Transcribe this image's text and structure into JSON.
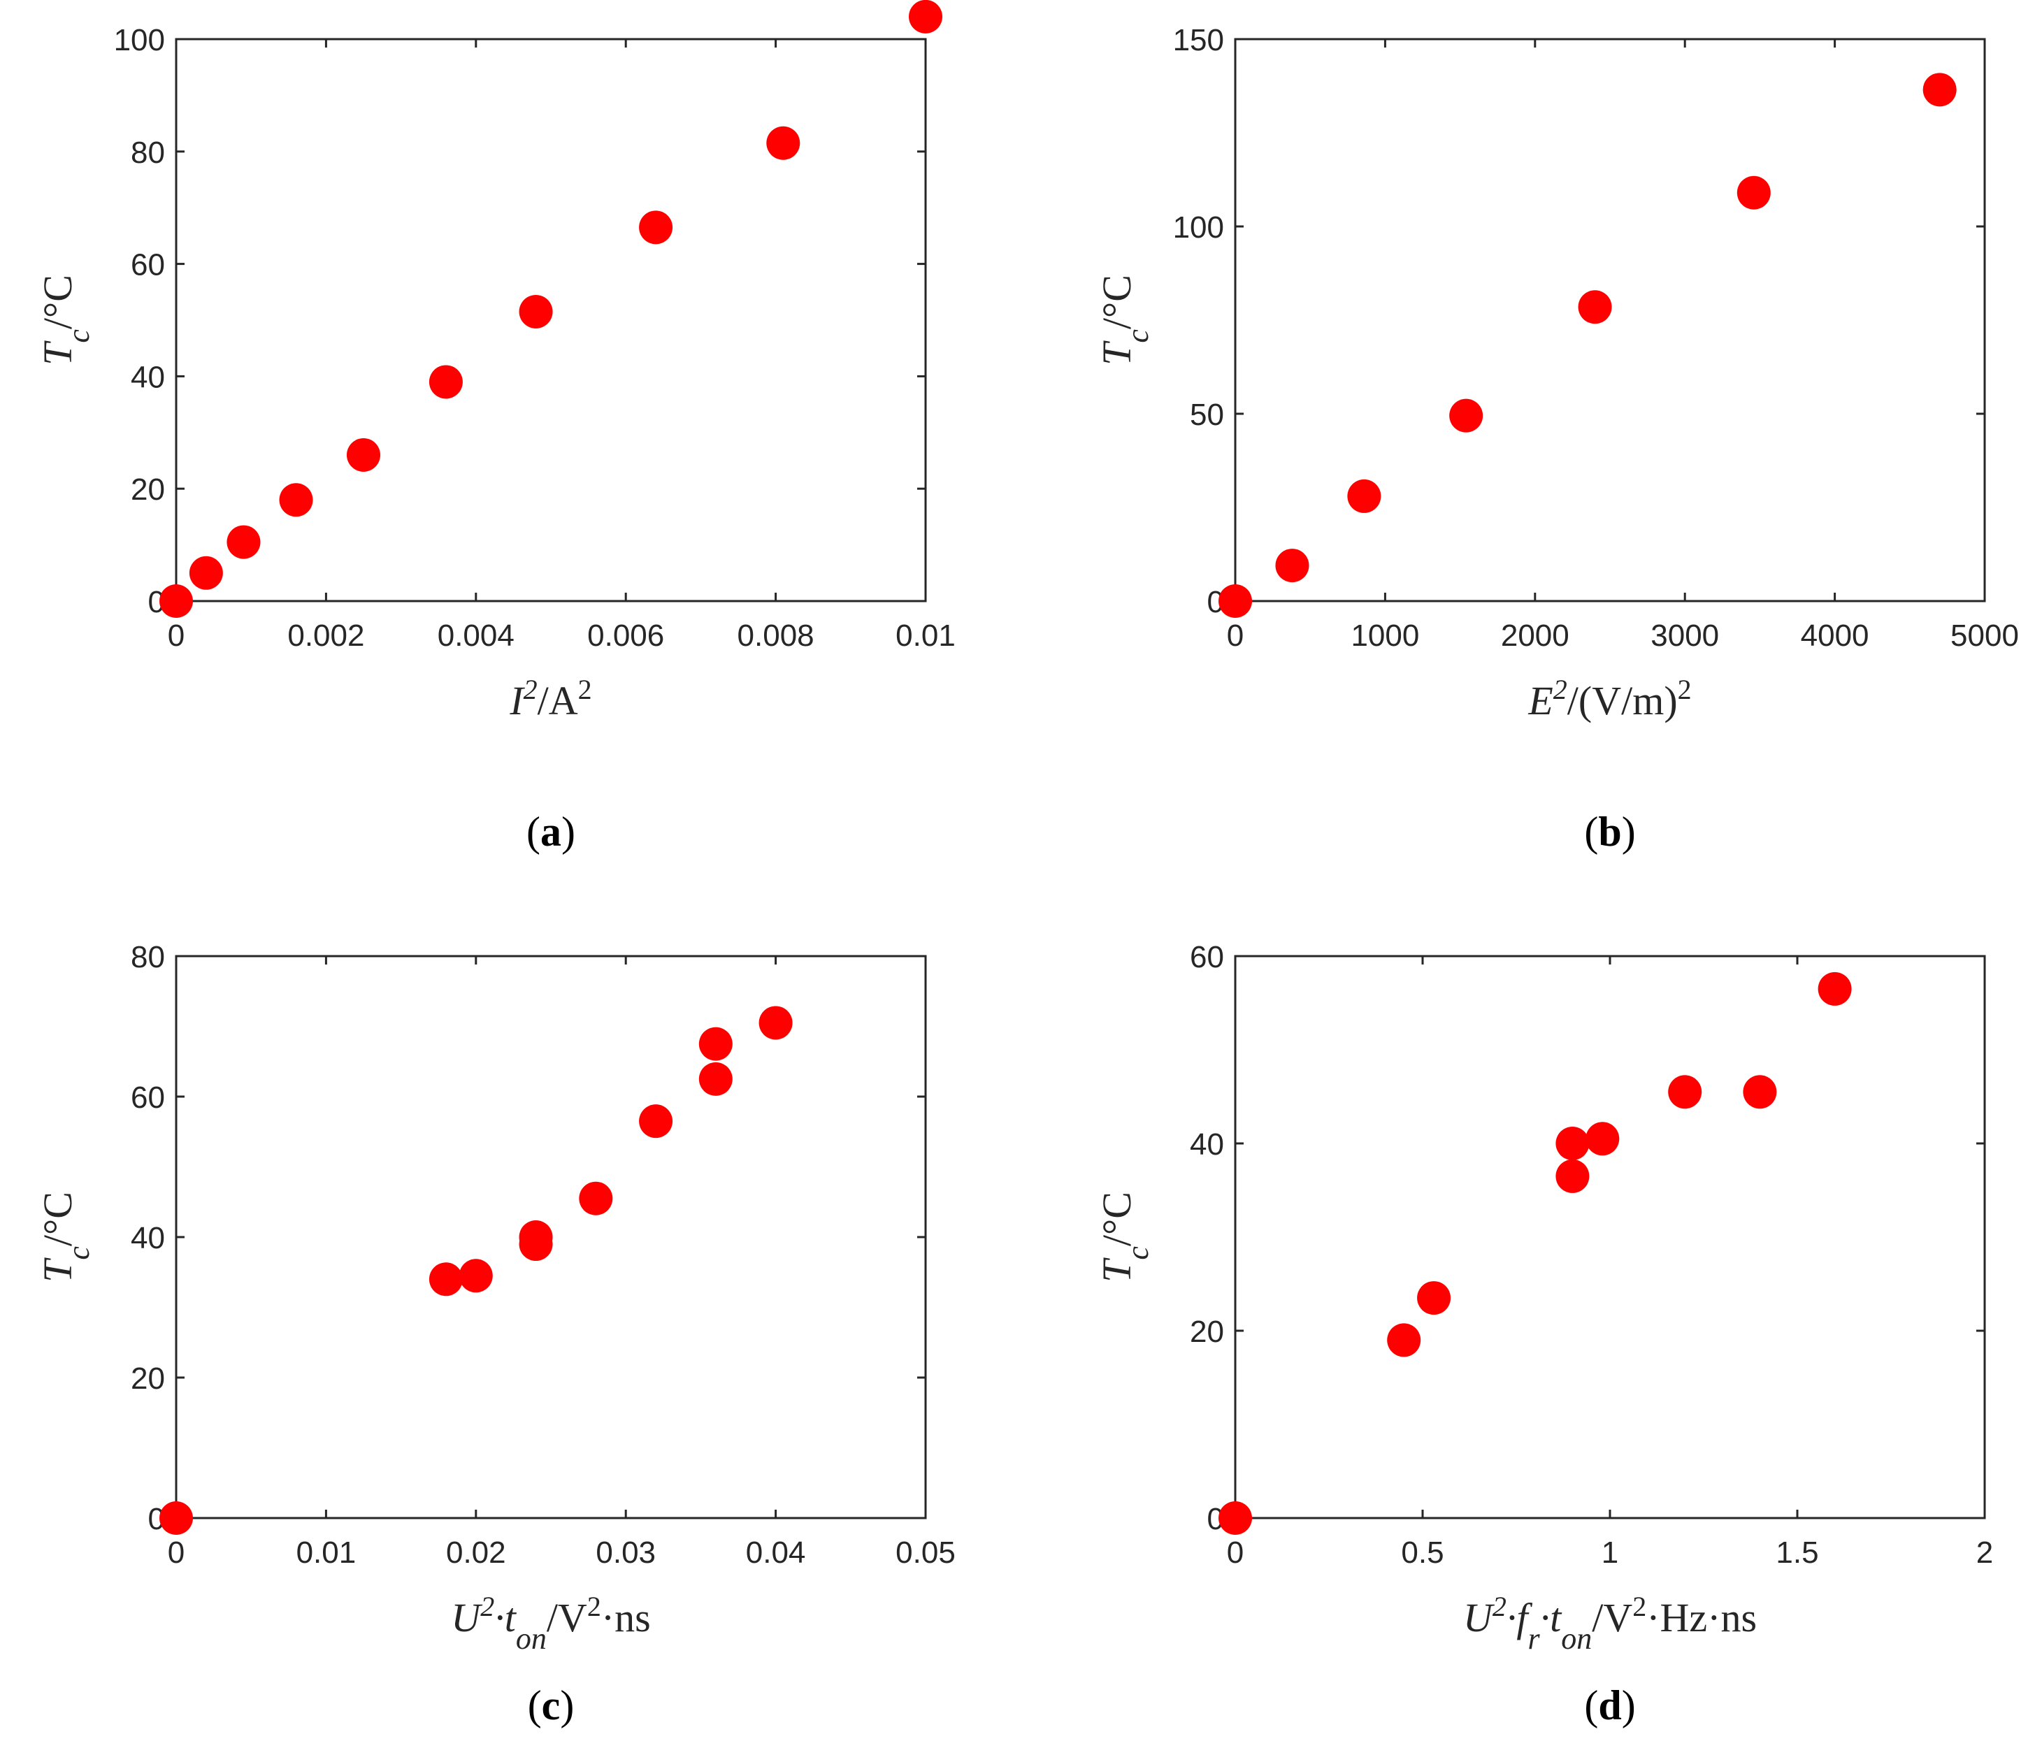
{
  "marker_color": "#ff0000",
  "axis_color": "#262626",
  "chart_data": [
    {
      "type": "scatter",
      "panel_label": "a",
      "xlabel": {
        "main": "I",
        "sup": "2",
        "rest": "/A",
        "sup2": "2"
      },
      "ylabel": {
        "main": "T",
        "sub": "c",
        "rest": "/°C"
      },
      "xlim": [
        0,
        0.01
      ],
      "ylim": [
        0,
        100
      ],
      "xticks": [
        0,
        0.002,
        0.004,
        0.006,
        0.008,
        0.01
      ],
      "xtick_labels": [
        "0",
        "0.002",
        "0.004",
        "0.006",
        "0.008",
        "0.01"
      ],
      "yticks": [
        0,
        20,
        40,
        60,
        80,
        100
      ],
      "ytick_labels": [
        "0",
        "20",
        "40",
        "60",
        "80",
        "100"
      ],
      "x": [
        0,
        0.0004,
        0.0009,
        0.0016,
        0.0025,
        0.0036,
        0.0048,
        0.0064,
        0.0081,
        0.01
      ],
      "y": [
        0,
        5,
        10.5,
        18,
        26,
        39,
        51.5,
        66.5,
        81.5,
        104
      ]
    },
    {
      "type": "scatter",
      "panel_label": "b",
      "xlabel": {
        "main": "E",
        "sup": "2",
        "rest": "/(V/m)",
        "sup2": "2"
      },
      "ylabel": {
        "main": "T",
        "sub": "c",
        "rest": "/°C"
      },
      "xlim": [
        0,
        5000
      ],
      "ylim": [
        0,
        150
      ],
      "xticks": [
        0,
        1000,
        2000,
        3000,
        4000,
        5000
      ],
      "xtick_labels": [
        "0",
        "1000",
        "2000",
        "3000",
        "4000",
        "5000"
      ],
      "yticks": [
        0,
        50,
        100,
        150
      ],
      "ytick_labels": [
        "0",
        "50",
        "100",
        "150"
      ],
      "x": [
        0,
        380,
        860,
        1540,
        2400,
        3460,
        4700
      ],
      "y": [
        0,
        9.5,
        28,
        49.5,
        78.5,
        109,
        136.5
      ]
    },
    {
      "type": "scatter",
      "panel_label": "c",
      "xlabel": {
        "main": "U",
        "sup": "2",
        "mid": "·t",
        "sub": "on",
        "rest": "/V",
        "sup2": "2",
        "tail": "·ns"
      },
      "ylabel": {
        "main": "T",
        "sub": "c",
        "rest": "/°C"
      },
      "xlim": [
        0,
        0.05
      ],
      "ylim": [
        0,
        80
      ],
      "xticks": [
        0,
        0.01,
        0.02,
        0.03,
        0.04,
        0.05
      ],
      "xtick_labels": [
        "0",
        "0.01",
        "0.02",
        "0.03",
        "0.04",
        "0.05"
      ],
      "yticks": [
        0,
        20,
        40,
        60,
        80
      ],
      "ytick_labels": [
        "0",
        "20",
        "40",
        "60",
        "80"
      ],
      "x": [
        0,
        0.018,
        0.02,
        0.024,
        0.024,
        0.028,
        0.032,
        0.036,
        0.036,
        0.04
      ],
      "y": [
        0,
        34,
        34.5,
        39,
        40,
        45.5,
        56.5,
        62.5,
        67.5,
        70.5
      ]
    },
    {
      "type": "scatter",
      "panel_label": "d",
      "xlabel": {
        "main": "U",
        "sup": "2",
        "mid": "·f",
        "sub": "r",
        "mid2": "·t",
        "sub2": "on",
        "rest": "/V",
        "sup2": "2",
        "tail": "·Hz·ns"
      },
      "ylabel": {
        "main": "T",
        "sub": "c",
        "rest": "/°C"
      },
      "xlim": [
        0,
        2
      ],
      "ylim": [
        0,
        60
      ],
      "xticks": [
        0,
        0.5,
        1,
        1.5,
        2
      ],
      "xtick_labels": [
        "0",
        "0.5",
        "1",
        "1.5",
        "2"
      ],
      "yticks": [
        0,
        20,
        40,
        60
      ],
      "ytick_labels": [
        "0",
        "20",
        "40",
        "60"
      ],
      "x": [
        0,
        0.45,
        0.53,
        0.9,
        0.9,
        0.98,
        1.2,
        1.4,
        1.6
      ],
      "y": [
        0,
        19,
        23.5,
        36.5,
        40,
        40.5,
        45.5,
        45.5,
        56.5
      ]
    }
  ]
}
